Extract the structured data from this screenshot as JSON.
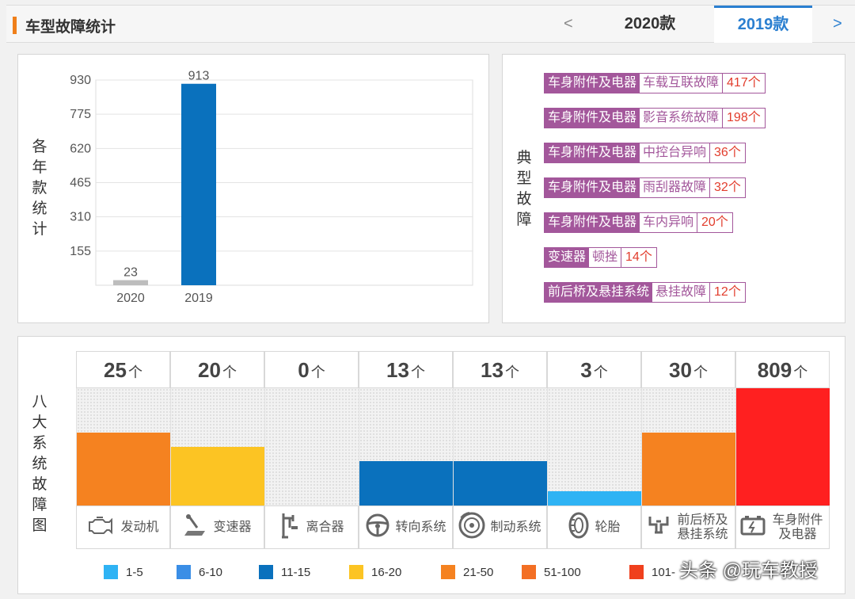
{
  "header": {
    "title": "车型故障统计",
    "prev_label": "<",
    "next_label": ">",
    "tabs": [
      {
        "label": "2020款"
      },
      {
        "label": "2019款",
        "active": true
      }
    ]
  },
  "year_chart": {
    "side_label": "各年款统计",
    "chart_data": {
      "type": "bar",
      "categories": [
        "2020",
        "2019"
      ],
      "values": [
        23,
        913
      ],
      "yticks": [
        155,
        310,
        465,
        620,
        775,
        930
      ],
      "ylim": [
        0,
        930
      ],
      "colors": [
        "#bdbdbd",
        "#0a71bd"
      ],
      "grid": true
    }
  },
  "typical_faults": {
    "side_label": "典型故障",
    "items": [
      {
        "category": "车身附件及电器",
        "fault": "车载互联故障",
        "count": "417个"
      },
      {
        "category": "车身附件及电器",
        "fault": "影音系统故障",
        "count": "198个"
      },
      {
        "category": "车身附件及电器",
        "fault": "中控台异响",
        "count": "36个"
      },
      {
        "category": "车身附件及电器",
        "fault": "雨刮器故障",
        "count": "32个"
      },
      {
        "category": "车身附件及电器",
        "fault": "车内异响",
        "count": "20个"
      },
      {
        "category": "变速器",
        "fault": "顿挫",
        "count": "14个"
      },
      {
        "category": "前后桥及悬挂系统",
        "fault": "悬挂故障",
        "count": "12个"
      }
    ]
  },
  "systems": {
    "side_label": "八大系统故障图",
    "unit": "个",
    "items": [
      {
        "count": "25",
        "label": "发动机",
        "icon": "engine-icon",
        "color": "#f58220",
        "level": 0.62
      },
      {
        "count": "20",
        "label": "变速器",
        "icon": "gearbox-icon",
        "color": "#fcc423",
        "level": 0.5
      },
      {
        "count": "0",
        "label": "离合器",
        "icon": "clutch-icon",
        "color": "#fcc423",
        "level": 0
      },
      {
        "count": "13",
        "label": "转向系统",
        "icon": "steering-wheel-icon",
        "color": "#0a71bd",
        "level": 0.38
      },
      {
        "count": "13",
        "label": "制动系统",
        "icon": "brake-disc-icon",
        "color": "#0a71bd",
        "level": 0.38
      },
      {
        "count": "3",
        "label": "轮胎",
        "icon": "tire-icon",
        "color": "#2fb3f4",
        "level": 0.12
      },
      {
        "count": "30",
        "label": "前后桥及悬挂系统",
        "icon": "suspension-icon",
        "color": "#f58220",
        "level": 0.62
      },
      {
        "count": "809",
        "label": "车身附件及电器",
        "icon": "battery-icon",
        "color": "#ff2020",
        "level": 1.0
      }
    ],
    "legend": [
      {
        "label": "1-5",
        "color": "#2fb3f4"
      },
      {
        "label": "6-10",
        "color": "#3a8ee6"
      },
      {
        "label": "11-15",
        "color": "#0a71bd"
      },
      {
        "label": "16-20",
        "color": "#fcc423"
      },
      {
        "label": "21-50",
        "color": "#f58220"
      },
      {
        "label": "51-100",
        "color": "#f36f24"
      },
      {
        "label": "101-",
        "color": "#f0401d"
      }
    ]
  },
  "watermark": "头条 @玩车教授"
}
